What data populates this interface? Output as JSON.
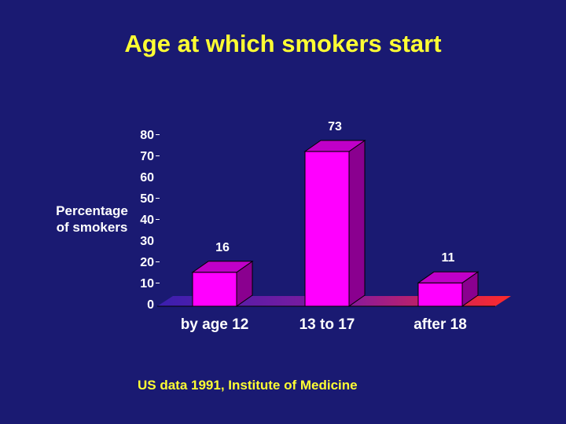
{
  "chart_data": {
    "type": "bar",
    "title": "Age at which smokers start",
    "ylabel_lines": [
      "Percentage",
      "of smokers"
    ],
    "categories": [
      "by age 12",
      "13 to 17",
      "after 18"
    ],
    "values": [
      16,
      73,
      11
    ],
    "data_labels": [
      "16",
      "73",
      "11"
    ],
    "yticks": [
      "0",
      "10",
      "20",
      "30",
      "40",
      "50",
      "60",
      "70",
      "80"
    ],
    "ylim": [
      0,
      80
    ],
    "bar_color": "#ff00ff",
    "floor_gradient": [
      "#3a1fb0",
      "#ff2a2a"
    ],
    "source": "US  data 1991, Institute of Medicine"
  }
}
